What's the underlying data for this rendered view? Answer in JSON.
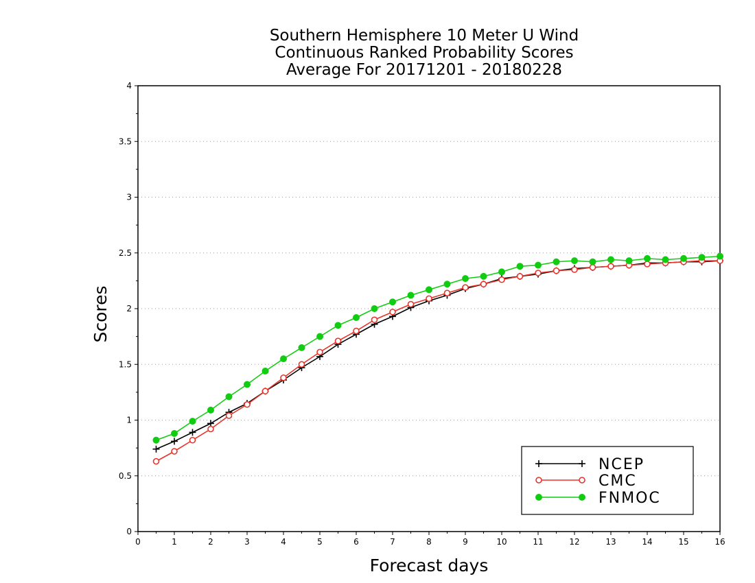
{
  "chart_data": {
    "type": "line",
    "title": [
      "Southern Hemisphere 10 Meter U Wind",
      "Continuous Ranked Probability Scores",
      "Average For 20171201 - 20180228"
    ],
    "xlabel": "Forecast days",
    "ylabel": "Scores",
    "xlim": [
      0,
      16
    ],
    "ylim": [
      0,
      4
    ],
    "xticks": [
      "0",
      "1",
      "2",
      "3",
      "4",
      "5",
      "6",
      "7",
      "8",
      "9",
      "10",
      "11",
      "12",
      "13",
      "14",
      "15",
      "16"
    ],
    "yticks": [
      "0",
      "0.5",
      "1",
      "1.5",
      "2",
      "2.5",
      "3",
      "3.5",
      "4"
    ],
    "grid": "horizontal dotted",
    "legend_position": "bottom-right",
    "x": [
      0.5,
      1,
      1.5,
      2,
      2.5,
      3,
      3.5,
      4,
      4.5,
      5,
      5.5,
      6,
      6.5,
      7,
      7.5,
      8,
      8.5,
      9,
      9.5,
      10,
      10.5,
      11,
      11.5,
      12,
      12.5,
      13,
      13.5,
      14,
      14.5,
      15,
      15.5,
      16
    ],
    "series": [
      {
        "name": "NCEP",
        "color": "#000000",
        "marker": "plus",
        "values": [
          0.74,
          0.81,
          0.89,
          0.97,
          1.07,
          1.15,
          1.26,
          1.36,
          1.47,
          1.57,
          1.68,
          1.77,
          1.86,
          1.93,
          2.01,
          2.07,
          2.12,
          2.18,
          2.22,
          2.27,
          2.29,
          2.31,
          2.34,
          2.36,
          2.37,
          2.38,
          2.39,
          2.41,
          2.41,
          2.42,
          2.42,
          2.43
        ]
      },
      {
        "name": "CMC",
        "color": "#e8332a",
        "marker": "open-circle",
        "values": [
          0.63,
          0.72,
          0.82,
          0.92,
          1.04,
          1.14,
          1.26,
          1.38,
          1.5,
          1.61,
          1.71,
          1.8,
          1.9,
          1.97,
          2.04,
          2.09,
          2.14,
          2.19,
          2.22,
          2.26,
          2.29,
          2.32,
          2.34,
          2.35,
          2.37,
          2.38,
          2.39,
          2.4,
          2.41,
          2.42,
          2.43,
          2.43
        ]
      },
      {
        "name": "FNMOC",
        "color": "#11cc11",
        "marker": "filled-circle",
        "values": [
          0.82,
          0.88,
          0.99,
          1.09,
          1.21,
          1.32,
          1.44,
          1.55,
          1.65,
          1.75,
          1.85,
          1.92,
          2.0,
          2.06,
          2.12,
          2.17,
          2.22,
          2.27,
          2.29,
          2.33,
          2.38,
          2.39,
          2.42,
          2.43,
          2.42,
          2.44,
          2.43,
          2.45,
          2.44,
          2.45,
          2.46,
          2.47
        ]
      }
    ]
  }
}
